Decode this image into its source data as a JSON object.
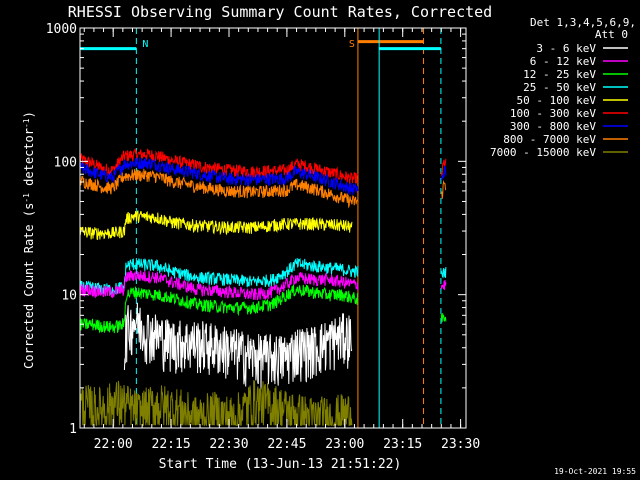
{
  "chart_data": {
    "type": "line",
    "title": "RHESSI Observing Summary Count Rates, Corrected",
    "xlabel": "Start Time (13-Jun-13 21:51:22)",
    "ylabel_main": "Corrected Count Rate (s",
    "ylabel_sup1": "-1",
    "ylabel_mid": " detector",
    "ylabel_sup2": "-1",
    "ylabel_end": ")",
    "y_scale": "log",
    "ylim": [
      1,
      1000
    ],
    "x_unit": "minutes since 21:51:22",
    "xlim": [
      0,
      100
    ],
    "x_ticks": [
      {
        "label": "22:00",
        "x": 8.6
      },
      {
        "label": "22:15",
        "x": 23.6
      },
      {
        "label": "22:30",
        "x": 38.6
      },
      {
        "label": "22:45",
        "x": 53.6
      },
      {
        "label": "23:00",
        "x": 68.6
      },
      {
        "label": "23:15",
        "x": 83.6
      },
      {
        "label": "23:30",
        "x": 98.6
      }
    ],
    "y_ticks": [
      {
        "label": "1",
        "value": 1
      },
      {
        "label": "10",
        "value": 10
      },
      {
        "label": "100",
        "value": 100
      },
      {
        "label": "1000",
        "value": 1000
      }
    ],
    "legend": {
      "header1": "Det 1,3,4,5,6,9,",
      "header2": "Att 0",
      "placement": "right",
      "items": [
        {
          "label": "3 - 6 keV",
          "color": "#ffffff"
        },
        {
          "label": "6 - 12 keV",
          "color": "#ff00ff"
        },
        {
          "label": "12 - 25 keV",
          "color": "#00ff00"
        },
        {
          "label": "25 - 50 keV",
          "color": "#00ffff"
        },
        {
          "label": "50 - 100 keV",
          "color": "#ffff00"
        },
        {
          "label": "100 - 300 keV",
          "color": "#ff0000"
        },
        {
          "label": "300 - 800 keV",
          "color": "#0000ff"
        },
        {
          "label": "800 - 7000 keV",
          "color": "#ff8000"
        },
        {
          "label": "7000 - 15000 keV",
          "color": "#808000"
        }
      ]
    },
    "intervals": [
      {
        "type": "night",
        "label": "N",
        "x_start": 0,
        "x_end": 14.6,
        "color": "#00ffff",
        "level": 700
      },
      {
        "type": "saa",
        "label": "S",
        "x_start": 72,
        "x_end": 89,
        "color": "#ff8000",
        "level": 790
      },
      {
        "type": "night",
        "label": "",
        "x_start": 77.5,
        "x_end": 93.5,
        "color": "#00ffff",
        "level": 700
      }
    ],
    "data_gap": [
      72,
      93.5
    ],
    "series": [
      {
        "name": "100 - 300 keV",
        "color": "#ff0000",
        "x": [
          0,
          3,
          6,
          8.6,
          11.5,
          14,
          17,
          20,
          23.6,
          28,
          33,
          38.6,
          45,
          50,
          53.6,
          56,
          60,
          64,
          68,
          70.5,
          93.7,
          94.3,
          94.8
        ],
        "y": [
          104,
          97,
          88,
          86,
          110,
          112,
          113,
          110,
          102,
          96,
          90,
          86,
          84,
          85,
          86,
          96,
          90,
          84,
          78,
          74,
          80,
          98,
          95
        ]
      },
      {
        "name": "300 - 800 keV",
        "color": "#0000ff",
        "x": [
          0,
          3,
          6,
          8.6,
          11.5,
          14,
          17,
          20,
          23.6,
          28,
          33,
          38.6,
          45,
          50,
          53.6,
          56,
          60,
          64,
          68,
          70.5,
          93.7,
          94.3,
          94.8
        ],
        "y": [
          90,
          84,
          78,
          76,
          96,
          97,
          98,
          95,
          88,
          84,
          78,
          74,
          73,
          74,
          75,
          84,
          78,
          72,
          66,
          62,
          70,
          85,
          83
        ]
      },
      {
        "name": "800 - 7000 keV",
        "color": "#ff8000",
        "x": [
          0,
          3,
          6,
          8.6,
          11.5,
          14,
          17,
          20,
          23.6,
          28,
          33,
          38.6,
          45,
          50,
          53.6,
          56,
          60,
          64,
          68,
          70.5,
          93.7,
          94.3,
          94.8
        ],
        "y": [
          72,
          68,
          64,
          63,
          78,
          79,
          79,
          77,
          71,
          67,
          63,
          60,
          59,
          60,
          61,
          67,
          63,
          58,
          53,
          50,
          55,
          68,
          66
        ]
      },
      {
        "name": "50 - 100 keV",
        "color": "#ffff00",
        "x": [
          0,
          3,
          6,
          8.6,
          11.5,
          11.9,
          14,
          20,
          23.6,
          30,
          38.6,
          45,
          53.6,
          60,
          68,
          70.5
        ],
        "y": [
          30,
          29,
          29,
          29,
          30,
          37,
          39,
          38,
          35,
          33,
          32,
          32,
          34,
          34,
          33,
          32
        ]
      },
      {
        "name": "25 - 50 keV",
        "color": "#00ffff",
        "x": [
          0,
          3,
          6,
          8.6,
          11.5,
          11.9,
          14,
          20,
          23.6,
          30,
          38.6,
          45,
          50,
          53.6,
          56,
          60,
          64,
          68,
          70.5,
          93.7,
          94.8
        ],
        "y": [
          11.5,
          11.3,
          11,
          11,
          11.5,
          16.5,
          17,
          16.5,
          15,
          13.5,
          13,
          12.5,
          13,
          15,
          17,
          16.5,
          16,
          15.5,
          15,
          14,
          15
        ]
      },
      {
        "name": "6 - 12 keV",
        "color": "#ff00ff",
        "x": [
          0,
          3,
          6,
          8.6,
          11.5,
          11.9,
          14,
          20,
          23.6,
          30,
          38.6,
          45,
          50,
          53.6,
          56,
          60,
          64,
          68,
          70.5,
          93.7,
          94.8
        ],
        "y": [
          11,
          10.8,
          10.5,
          10.5,
          11,
          13.5,
          14,
          13.5,
          12.5,
          11,
          10.5,
          10,
          10.5,
          12,
          13.5,
          13,
          13,
          12.5,
          12,
          11.5,
          12
        ]
      },
      {
        "name": "12 - 25 keV",
        "color": "#00ff00",
        "x": [
          0,
          3,
          6,
          8.6,
          11.5,
          11.9,
          14,
          20,
          23.6,
          30,
          38.6,
          45,
          50,
          53.6,
          56,
          60,
          64,
          68,
          70.5,
          93.7,
          94.8
        ],
        "y": [
          6,
          6,
          5.8,
          5.7,
          6,
          10,
          10.5,
          10,
          9.5,
          8.5,
          8,
          8,
          8.5,
          10,
          11,
          10.5,
          10,
          10,
          9.5,
          6.5,
          7
        ]
      },
      {
        "name": "3 - 6 keV",
        "color": "#ffffff",
        "x": [
          11.5,
          11.9,
          14,
          17,
          20,
          23.6,
          30,
          38.6,
          45,
          50,
          53.6,
          56,
          60,
          64,
          68,
          70.5
        ],
        "y": [
          3,
          5.5,
          6.5,
          5.5,
          5,
          4.5,
          4.5,
          4,
          3.5,
          3.5,
          3.5,
          4,
          4,
          4.5,
          5,
          5
        ]
      },
      {
        "name": "7000 - 15000 keV",
        "color": "#808000",
        "x": [
          0,
          5,
          10,
          15,
          20,
          25,
          30,
          35,
          40,
          45,
          50,
          55,
          60,
          65,
          70.5
        ],
        "y": [
          1.5,
          1.4,
          1.6,
          1.3,
          1.5,
          1.4,
          1.2,
          1.3,
          1.2,
          1.6,
          1.5,
          1.3,
          1.2,
          1.2,
          1.3
        ]
      }
    ]
  },
  "footer": {
    "timestamp": "19-Oct-2021 19:55"
  }
}
